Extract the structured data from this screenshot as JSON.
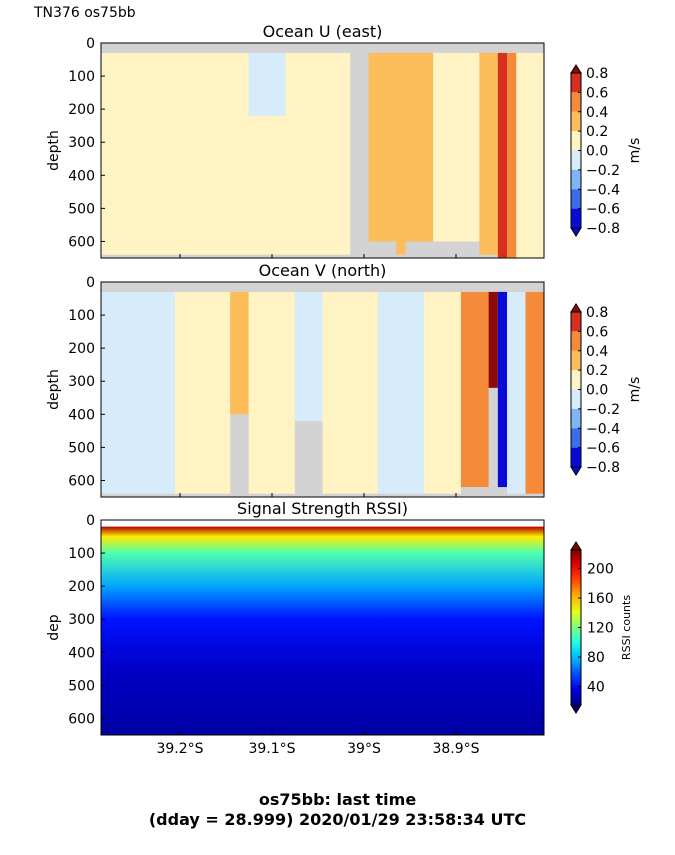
{
  "figure": {
    "header": "TN376 os75bb",
    "footer_line1": "os75bb: last time",
    "footer_line2": "(dday = 28.999) 2020/01/29 23:58:34 UTC"
  },
  "chart_data": [
    {
      "type": "heatmap",
      "title": "Ocean U (east)",
      "xlabel": "",
      "ylabel": "depth",
      "yticks": [
        "0",
        "100",
        "200",
        "300",
        "400",
        "500",
        "600"
      ],
      "ylim": [
        650,
        0
      ],
      "xticks": [
        "39.2°S",
        "39.1°S",
        "39°S",
        "38.9°S"
      ],
      "xlim": [
        -39.29,
        -38.81
      ],
      "colorbar": {
        "label": "m/s",
        "ticks": [
          "0.8",
          "0.6",
          "0.4",
          "0.2",
          "0.0",
          "−0.2",
          "−0.4",
          "−0.6",
          "−0.8"
        ],
        "levels": [
          -0.8,
          -0.6,
          -0.4,
          -0.2,
          0.0,
          0.2,
          0.4,
          0.6,
          0.8
        ],
        "colors": [
          "#0b0bd9",
          "#3a6de8",
          "#7fb5f5",
          "#d6ecfb",
          "#fff3c4",
          "#fdbd5a",
          "#f58a3a",
          "#d8301f",
          "#8b0a0a"
        ]
      },
      "nodata_color": "#d3d3d3",
      "regions": [
        {
          "lat": [
            -39.29,
            -39.02
          ],
          "depth": [
            30,
            640
          ],
          "value": 0.05
        },
        {
          "lat": [
            -39.0,
            -38.93
          ],
          "depth": [
            30,
            600
          ],
          "value": 0.25
        },
        {
          "lat": [
            -38.97,
            -38.96
          ],
          "depth": [
            30,
            640
          ],
          "value": 0.25
        },
        {
          "lat": [
            -39.13,
            -39.09
          ],
          "depth": [
            30,
            220
          ],
          "value": -0.1
        },
        {
          "lat": [
            -38.93,
            -38.88
          ],
          "depth": [
            30,
            600
          ],
          "value": 0.1
        },
        {
          "lat": [
            -38.88,
            -38.86
          ],
          "depth": [
            30,
            640
          ],
          "value": 0.25
        },
        {
          "lat": [
            -38.86,
            -38.85
          ],
          "depth": [
            30,
            650
          ],
          "value": 0.8
        },
        {
          "lat": [
            -38.85,
            -38.84
          ],
          "depth": [
            30,
            650
          ],
          "value": 0.55
        },
        {
          "lat": [
            -38.84,
            -38.81
          ],
          "depth": [
            30,
            650
          ],
          "value": 0.1
        }
      ]
    },
    {
      "type": "heatmap",
      "title": "Ocean V (north)",
      "xlabel": "",
      "ylabel": "depth",
      "yticks": [
        "0",
        "100",
        "200",
        "300",
        "400",
        "500",
        "600"
      ],
      "ylim": [
        650,
        0
      ],
      "xticks": [
        "39.2°S",
        "39.1°S",
        "39°S",
        "38.9°S"
      ],
      "xlim": [
        -39.29,
        -38.81
      ],
      "colorbar": {
        "label": "m/s",
        "ticks": [
          "0.8",
          "0.6",
          "0.4",
          "0.2",
          "0.0",
          "−0.2",
          "−0.4",
          "−0.6",
          "−0.8"
        ],
        "levels": [
          -0.8,
          -0.6,
          -0.4,
          -0.2,
          0.0,
          0.2,
          0.4,
          0.6,
          0.8
        ],
        "colors": [
          "#0b0bd9",
          "#3a6de8",
          "#7fb5f5",
          "#d6ecfb",
          "#fff3c4",
          "#fdbd5a",
          "#f58a3a",
          "#d8301f",
          "#8b0a0a"
        ]
      },
      "nodata_color": "#d3d3d3",
      "regions": [
        {
          "lat": [
            -39.29,
            -39.21
          ],
          "depth": [
            30,
            640
          ],
          "value": -0.1
        },
        {
          "lat": [
            -39.21,
            -39.15
          ],
          "depth": [
            30,
            640
          ],
          "value": 0.05
        },
        {
          "lat": [
            -39.15,
            -39.13
          ],
          "depth": [
            30,
            400
          ],
          "value": 0.25
        },
        {
          "lat": [
            -39.13,
            -39.08
          ],
          "depth": [
            30,
            640
          ],
          "value": 0.05
        },
        {
          "lat": [
            -39.08,
            -39.05
          ],
          "depth": [
            30,
            420
          ],
          "value": -0.1
        },
        {
          "lat": [
            -39.05,
            -38.99
          ],
          "depth": [
            30,
            640
          ],
          "value": 0.05
        },
        {
          "lat": [
            -38.99,
            -38.94
          ],
          "depth": [
            30,
            640
          ],
          "value": -0.1
        },
        {
          "lat": [
            -38.94,
            -38.9
          ],
          "depth": [
            30,
            640
          ],
          "value": 0.05
        },
        {
          "lat": [
            -38.9,
            -38.87
          ],
          "depth": [
            30,
            620
          ],
          "value": 0.5
        },
        {
          "lat": [
            -38.87,
            -38.86
          ],
          "depth": [
            30,
            320
          ],
          "value": 0.85
        },
        {
          "lat": [
            -38.86,
            -38.85
          ],
          "depth": [
            30,
            620
          ],
          "value": -0.7
        },
        {
          "lat": [
            -38.85,
            -38.83
          ],
          "depth": [
            30,
            640
          ],
          "value": -0.1
        },
        {
          "lat": [
            -38.83,
            -38.81
          ],
          "depth": [
            30,
            640
          ],
          "value": 0.6
        }
      ]
    },
    {
      "type": "heatmap",
      "title": "Signal Strength RSSI)",
      "xlabel": "",
      "ylabel": "dep",
      "yticks": [
        "0",
        "100",
        "200",
        "300",
        "400",
        "500",
        "600"
      ],
      "ylim": [
        650,
        0
      ],
      "xticks": [
        "39.2°S",
        "39.1°S",
        "39°S",
        "38.9°S"
      ],
      "xlim": [
        -39.29,
        -38.81
      ],
      "colorbar": {
        "label": "RSSI counts",
        "ticks": [
          "200",
          "160",
          "120",
          "80",
          "40"
        ],
        "range": [
          15,
          225
        ]
      },
      "profile": [
        {
          "depth": 20,
          "value": 215
        },
        {
          "depth": 50,
          "value": 150
        },
        {
          "depth": 100,
          "value": 110
        },
        {
          "depth": 200,
          "value": 75
        },
        {
          "depth": 300,
          "value": 45
        },
        {
          "depth": 450,
          "value": 30
        },
        {
          "depth": 650,
          "value": 22
        }
      ]
    }
  ]
}
